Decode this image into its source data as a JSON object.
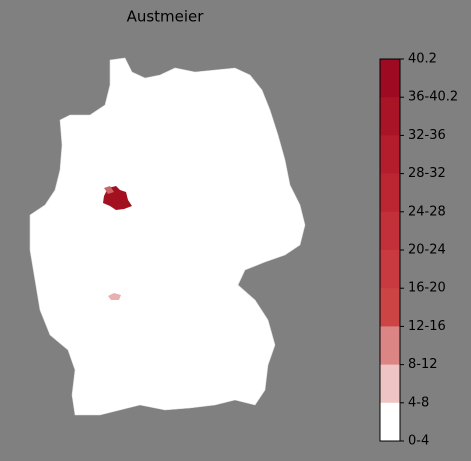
{
  "title": "Austmeier",
  "colorbar": {
    "segment_colors": [
      "#9e0a22",
      "#a91426",
      "#b31d2c",
      "#bc2632",
      "#c3303a",
      "#c83a3f",
      "#cc4444",
      "#dc8585",
      "#efc4c4",
      "#ffffff"
    ],
    "tick_labels": [
      "40.2",
      "36-40.2",
      "32-36",
      "28-32",
      "24-28",
      "20-24",
      "16-20",
      "12-16",
      "8-12",
      "4-8",
      "0-4"
    ]
  }
}
